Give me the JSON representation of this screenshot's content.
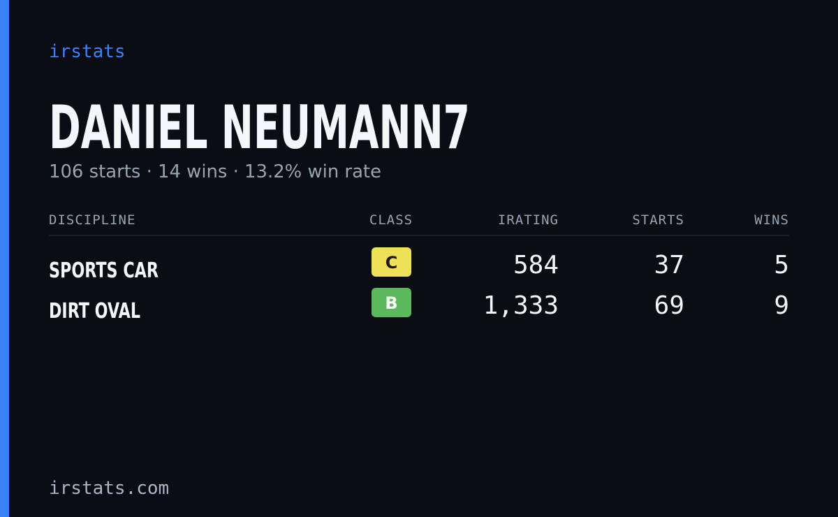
{
  "brand": "irstats",
  "title": "DANIEL NEUMANN7",
  "subtitle": "106 starts · 14 wins · 13.2% win rate",
  "table": {
    "headers": [
      "DISCIPLINE",
      "CLASS",
      "IRATING",
      "STARTS",
      "WINS"
    ],
    "rows": [
      [
        "SPORTS CAR",
        "C",
        "584",
        "37",
        "5"
      ],
      [
        "DIRT OVAL",
        "B",
        "1,333",
        "69",
        "9"
      ]
    ]
  },
  "footer": "irstats.com"
}
